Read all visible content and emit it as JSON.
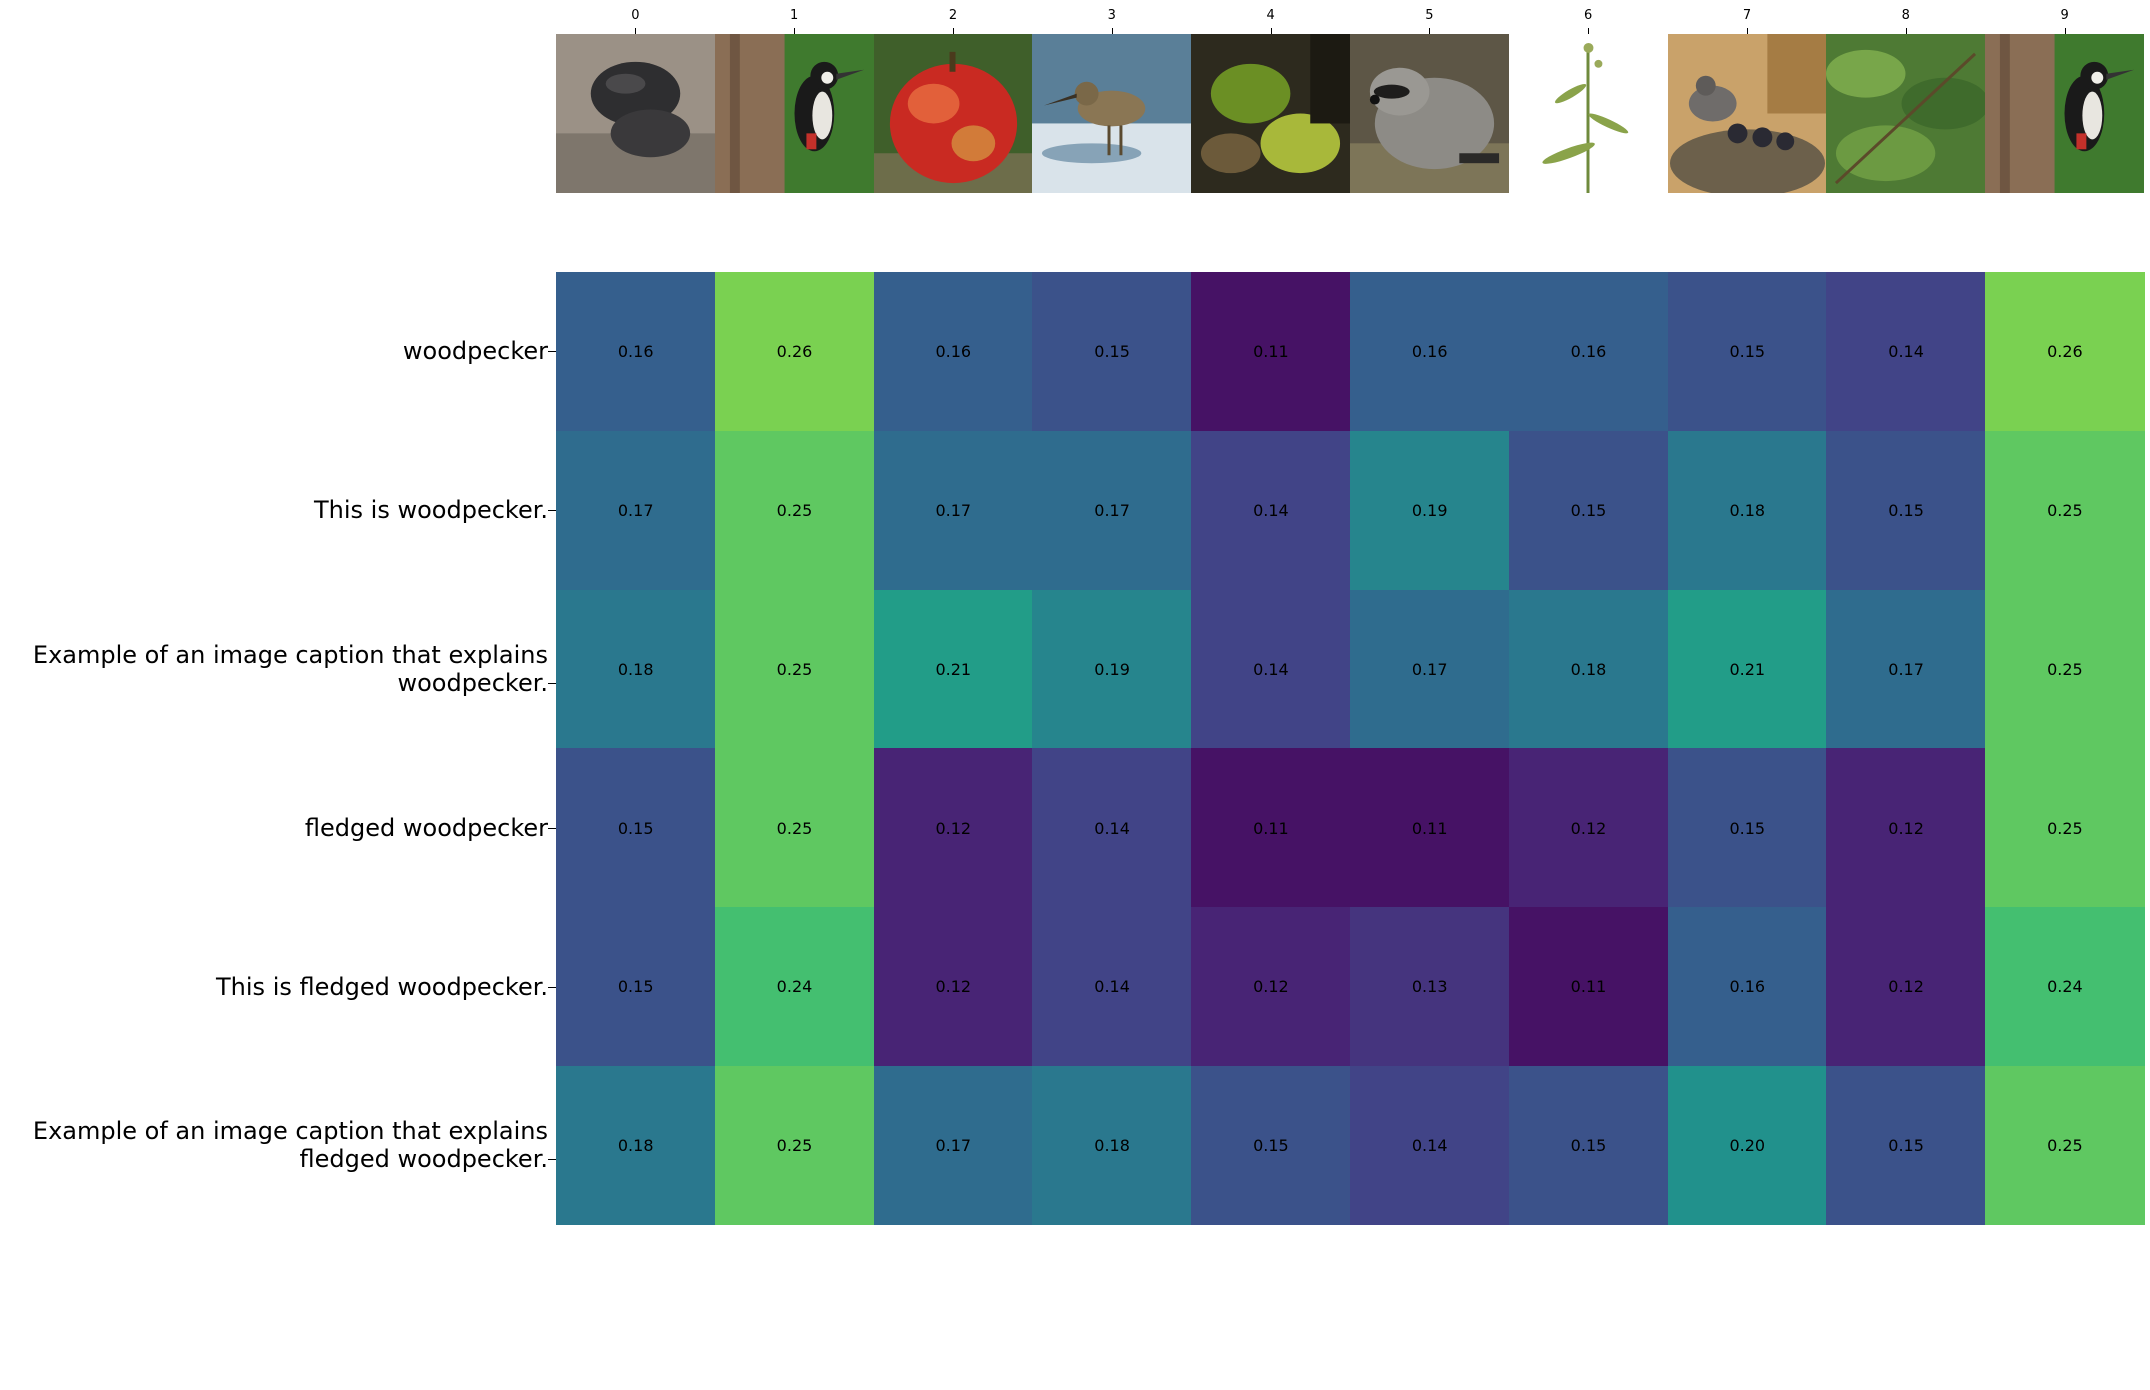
{
  "chart_data": {
    "type": "heatmap",
    "x_tick_labels": [
      "0",
      "1",
      "2",
      "3",
      "4",
      "5",
      "6",
      "7",
      "8",
      "9"
    ],
    "thumbnails": [
      "dark-fungus-on-bark",
      "woodpecker-on-tree",
      "red-apple",
      "sandpiper-bird-in-water",
      "mossy-forest-floor",
      "raccoon",
      "plant-stem-on-white",
      "bird-feeding-chicks-in-nest",
      "green-foliage",
      "woodpecker-on-tree"
    ],
    "y_tick_labels": [
      "woodpecker",
      "This is woodpecker.",
      "Example of an image caption that explains\nwoodpecker.",
      "fledged woodpecker",
      "This is fledged woodpecker.",
      "Example of an image caption that explains\nfledged woodpecker."
    ],
    "values": [
      [
        0.16,
        0.26,
        0.16,
        0.15,
        0.11,
        0.16,
        0.16,
        0.15,
        0.14,
        0.26
      ],
      [
        0.17,
        0.25,
        0.17,
        0.17,
        0.14,
        0.19,
        0.15,
        0.18,
        0.15,
        0.25
      ],
      [
        0.18,
        0.25,
        0.21,
        0.19,
        0.14,
        0.17,
        0.18,
        0.21,
        0.17,
        0.25
      ],
      [
        0.15,
        0.25,
        0.12,
        0.14,
        0.11,
        0.11,
        0.12,
        0.15,
        0.12,
        0.25
      ],
      [
        0.15,
        0.24,
        0.12,
        0.14,
        0.12,
        0.13,
        0.11,
        0.16,
        0.12,
        0.24
      ],
      [
        0.18,
        0.25,
        0.17,
        0.18,
        0.15,
        0.14,
        0.15,
        0.2,
        0.15,
        0.25
      ]
    ],
    "colormap": "viridis",
    "vmin": 0.1,
    "vmax": 0.3,
    "title": "",
    "xlabel": "",
    "ylabel": ""
  }
}
